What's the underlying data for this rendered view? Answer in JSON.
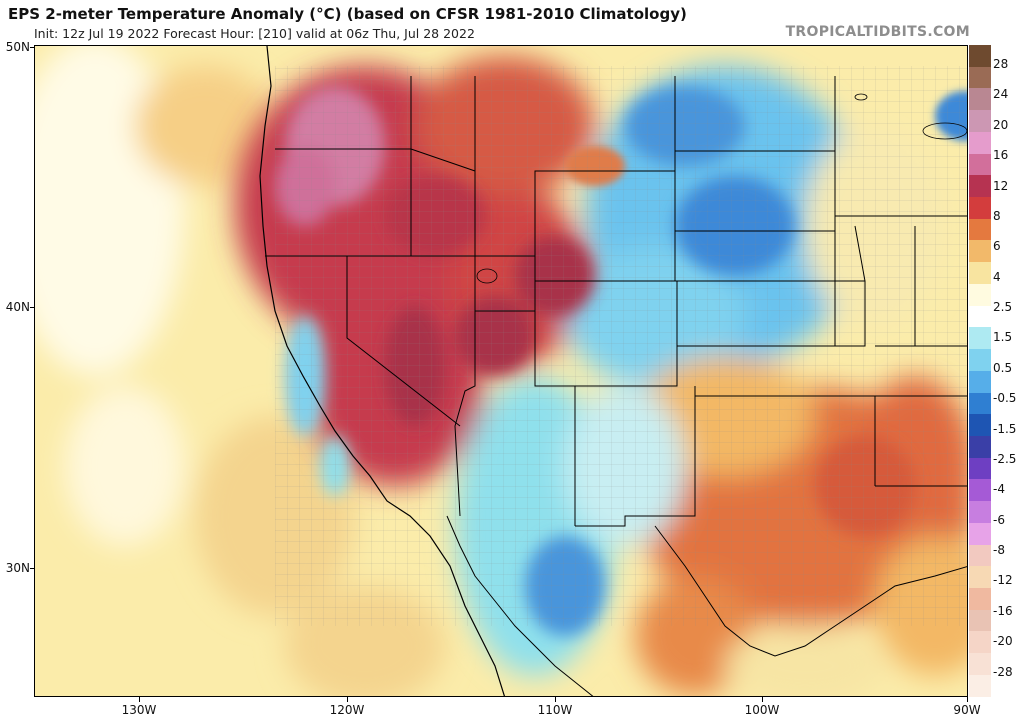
{
  "header": {
    "title": "EPS 2-meter Temperature Anomaly (°C) (based on CFSR 1981-2010 Climatology)",
    "subtitle": "Init: 12z Jul 19 2022   Forecast Hour: [210]   valid at 06z Thu, Jul 28 2022",
    "brand": "TROPICALTIDBITS.COM"
  },
  "map": {
    "lat_labels": [
      "50N",
      "40N",
      "30N"
    ],
    "lon_labels": [
      "130W",
      "120W",
      "110W",
      "100W",
      "90W"
    ],
    "colors": {
      "deep_red": "#9e2a43",
      "red": "#c63b4d",
      "magenta": "#d27da3",
      "orange": "#e07b48",
      "light_orange": "#f1b56e",
      "pale_yellow": "#fbecaa",
      "white": "#ffffff",
      "cyan": "#8fe0ec",
      "light_blue": "#6ac3ee",
      "blue": "#3d89d8",
      "state_line": "#000000",
      "county_line": "#7a7a7a"
    }
  },
  "colorbar": {
    "labels": [
      "28",
      "24",
      "20",
      "16",
      "12",
      "8",
      "6",
      "4",
      "2.5",
      "1.5",
      "0.5",
      "-0.5",
      "-1.5",
      "-2.5",
      "-4",
      "-6",
      "-8",
      "-12",
      "-16",
      "-20",
      "-28"
    ],
    "colors": [
      "#6e4a2f",
      "#9a6b55",
      "#b98792",
      "#cc97b3",
      "#e59ccc",
      "#d26f9b",
      "#b63351",
      "#d33d3d",
      "#e4793f",
      "#f2b96a",
      "#f8e4a0",
      "#fffbe0",
      "#ffffff",
      "#aeeaf2",
      "#7fd2ef",
      "#56aee9",
      "#2f7fd2",
      "#1e55b3",
      "#3a3fa7",
      "#6e3fc2",
      "#a55ad6",
      "#c77ee0",
      "#e7a3e8",
      "#f2c9c0",
      "#f7d9b4",
      "#f0b9a0",
      "#e9c3b4",
      "#f5d5c7",
      "#f8e1d5",
      "#fbeee5"
    ]
  }
}
